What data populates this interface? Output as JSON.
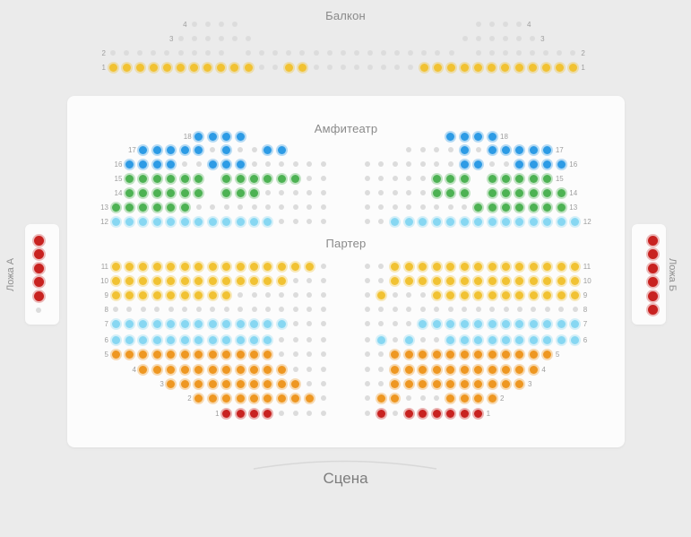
{
  "colors": {
    "yellow": "#F1C233",
    "blue": "#2D9BE5",
    "green": "#4DB253",
    "cyan": "#87D7F2",
    "orange": "#EE9722",
    "red": "#C82220",
    "taken": "#DCDCDC"
  },
  "balcony": {
    "title": "Балкон",
    "rows": [
      {
        "num": "4",
        "cells": "______...._________________....____"
      },
      {
        "num": "3",
        "cells": "_____......_______________......___"
      },
      {
        "num": "2",
        "cells": "........._................_........"
      },
      {
        "num": "1",
        "cells": "YYYYYYYYYYY..YY........YYYYYYYYYYYY"
      }
    ]
  },
  "amphitheater": {
    "title": "Амфитеатр",
    "rows": [
      {
        "num": "18",
        "left": "______BBBB______",
        "right": "______BBBB______"
      },
      {
        "num": "17",
        "left": "__BBBBB.B..BB___",
        "right": "___....B.BBBBB__"
      },
      {
        "num": "16",
        "left": "_BBBB..BBB......",
        "right": ".......BB..BBBB_"
      },
      {
        "num": "15",
        "left": "_GGGGGG_GGGGGG..",
        "right": ".....GGG_GGGGG__"
      },
      {
        "num": "14",
        "left": "_GGGGGG_GGG.....",
        "right": ".....GGG_GGGGGG_"
      },
      {
        "num": "13",
        "left": "GGGGGG..........",
        "right": "........GGGGGGG_"
      },
      {
        "num": "12",
        "left": "CCCCCCCCCCCC....",
        "right": "..CCCCCCCCCCCCCC"
      }
    ]
  },
  "parterre": {
    "title": "Партер",
    "rows": [
      {
        "num": "11",
        "left": "YYYYYYYYYYYYYYY.",
        "right": "..YYYYYYYYYYYYYY"
      },
      {
        "num": "10",
        "left": "YYYYYYYYYYYYY...",
        "right": "..YYYYYYYYYYYYYY"
      },
      {
        "num": "9",
        "left": "YYYYYYYYY.......",
        "right": ".Y...YYYYYYYYYYY"
      },
      {
        "num": "8",
        "left": "................",
        "right": "................"
      },
      {
        "num": "7",
        "left": "CCCCCCCCCCCCC...",
        "right": "....CCCCCCCCCCCC"
      },
      {
        "num": "6",
        "left": "CCCCCCCCCCCC....",
        "right": ".C.C..CCCCCCCCCC"
      },
      {
        "num": "5",
        "left": "OOOOOOOOOOOO....",
        "right": "..OOOOOOOOOOOO__"
      },
      {
        "num": "4",
        "left": "__OOOOOOOOOOO...",
        "right": "..OOOOOOOOOOO___"
      },
      {
        "num": "3",
        "left": "____OOOOOOOOOO..",
        "right": "..OOOOOOOOOO____"
      },
      {
        "num": "2",
        "left": "______OOOOOOOOO.",
        "right": ".OO...OOOO______"
      },
      {
        "num": "1",
        "left": "________RRRR....",
        "right": ".R.RRRRRR_______"
      }
    ]
  },
  "boxes": {
    "left": {
      "label": "Ложа А",
      "seats": "RRRRR."
    },
    "right": {
      "label": "Ложа Б",
      "seats": "RRRRRR"
    }
  },
  "stage": {
    "label": "Сцена"
  }
}
